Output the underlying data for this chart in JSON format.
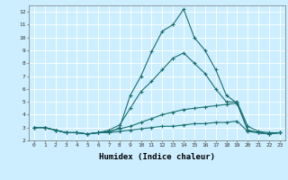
{
  "title": "",
  "xlabel": "Humidex (Indice chaleur)",
  "bg_color": "#cceeff",
  "grid_color": "#ffffff",
  "line_color": "#1a7070",
  "xlim": [
    -0.5,
    23.5
  ],
  "ylim": [
    2,
    12.5
  ],
  "yticks": [
    2,
    3,
    4,
    5,
    6,
    7,
    8,
    9,
    10,
    11,
    12
  ],
  "xticks": [
    0,
    1,
    2,
    3,
    4,
    5,
    6,
    7,
    8,
    9,
    10,
    11,
    12,
    13,
    14,
    15,
    16,
    17,
    18,
    19,
    20,
    21,
    22,
    23
  ],
  "series": [
    {
      "x": [
        0,
        1,
        2,
        3,
        4,
        5,
        6,
        7,
        8,
        9,
        10,
        11,
        12,
        13,
        14,
        15,
        16,
        17,
        18,
        19,
        20,
        21,
        22,
        23
      ],
      "y": [
        3.0,
        3.0,
        2.8,
        2.6,
        2.6,
        2.5,
        2.6,
        2.6,
        3.0,
        5.5,
        7.0,
        8.9,
        10.5,
        11.0,
        12.2,
        10.0,
        9.0,
        7.5,
        5.5,
        4.9,
        2.8,
        2.6,
        2.5,
        2.6
      ]
    },
    {
      "x": [
        0,
        1,
        2,
        3,
        4,
        5,
        6,
        7,
        8,
        9,
        10,
        11,
        12,
        13,
        14,
        15,
        16,
        17,
        18,
        19,
        20,
        21,
        22,
        23
      ],
      "y": [
        3.0,
        3.0,
        2.8,
        2.6,
        2.6,
        2.5,
        2.6,
        2.8,
        3.2,
        4.5,
        5.8,
        6.6,
        7.5,
        8.4,
        8.8,
        8.0,
        7.2,
        6.0,
        5.0,
        5.0,
        3.1,
        2.7,
        2.6,
        2.6
      ]
    },
    {
      "x": [
        0,
        1,
        2,
        3,
        4,
        5,
        6,
        7,
        8,
        9,
        10,
        11,
        12,
        13,
        14,
        15,
        16,
        17,
        18,
        19,
        20,
        21,
        22,
        23
      ],
      "y": [
        3.0,
        3.0,
        2.8,
        2.6,
        2.6,
        2.5,
        2.6,
        2.7,
        2.9,
        3.1,
        3.4,
        3.7,
        4.0,
        4.2,
        4.4,
        4.5,
        4.6,
        4.7,
        4.8,
        4.9,
        2.8,
        2.6,
        2.5,
        2.6
      ]
    },
    {
      "x": [
        0,
        1,
        2,
        3,
        4,
        5,
        6,
        7,
        8,
        9,
        10,
        11,
        12,
        13,
        14,
        15,
        16,
        17,
        18,
        19,
        20,
        21,
        22,
        23
      ],
      "y": [
        3.0,
        3.0,
        2.8,
        2.6,
        2.6,
        2.5,
        2.6,
        2.6,
        2.7,
        2.8,
        2.9,
        3.0,
        3.1,
        3.1,
        3.2,
        3.3,
        3.3,
        3.4,
        3.4,
        3.5,
        2.7,
        2.6,
        2.5,
        2.6
      ]
    }
  ]
}
